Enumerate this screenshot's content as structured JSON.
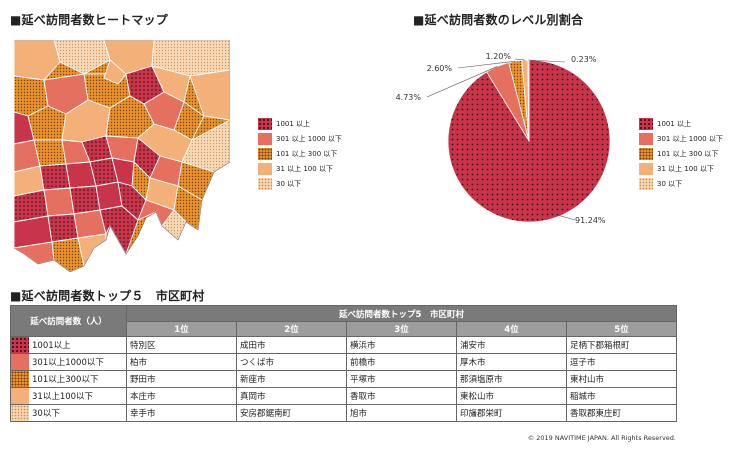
{
  "headings": {
    "map": "■延べ訪問者数ヒートマップ",
    "pie": "■延べ訪問者数のレベル別割合",
    "table": "■延べ訪問者数トップ５　市区町村"
  },
  "colors": {
    "level_1001": "#c8344a",
    "level_301": "#e5705f",
    "level_101": "#e9922e",
    "level_31": "#f4b079",
    "level_30": "#f6d7b5"
  },
  "legend": [
    {
      "label": "1001 以上"
    },
    {
      "label": "301 以上 1000 以下"
    },
    {
      "label": "101 以上 300 以下"
    },
    {
      "label": "31 以上 100 以下"
    },
    {
      "label": "30 以下"
    }
  ],
  "chart_data": {
    "type": "pie",
    "title": "■延べ訪問者数のレベル別割合",
    "categories": [
      "1001 以上",
      "301 以上 1000 以下",
      "101 以上 300 以下",
      "31 以上 100 以下",
      "30 以下"
    ],
    "values": [
      91.24,
      4.73,
      2.6,
      1.2,
      0.23
    ],
    "value_labels": [
      "91.24%",
      "4.73%",
      "2.60%",
      "1.20%",
      "0.23%"
    ],
    "colors": [
      "#c8344a",
      "#e5705f",
      "#e9922e",
      "#f4b079",
      "#f6d7b5"
    ],
    "legend_position": "right"
  },
  "table": {
    "lead_header": "延べ訪問者数（人）",
    "top_header": "延べ訪問者数トップ5　市区町村",
    "ranks": [
      "1位",
      "2位",
      "3位",
      "4位",
      "5位"
    ],
    "rows": [
      {
        "level": "1001以上",
        "cities": [
          "特別区",
          "成田市",
          "横浜市",
          "浦安市",
          "足柄下郡箱根町"
        ]
      },
      {
        "level": "301以上1000以下",
        "cities": [
          "柏市",
          "つくば市",
          "前橋市",
          "厚木市",
          "逗子市"
        ]
      },
      {
        "level": "101以上300以下",
        "cities": [
          "野田市",
          "新座市",
          "平塚市",
          "那須塩原市",
          "東村山市"
        ]
      },
      {
        "level": "31以上100以下",
        "cities": [
          "本庄市",
          "真岡市",
          "香取市",
          "東松山市",
          "稲城市"
        ]
      },
      {
        "level": "30以下",
        "cities": [
          "幸手市",
          "安房郡鋸南町",
          "旭市",
          "印旛郡栄町",
          "香取郡東庄町"
        ]
      }
    ]
  },
  "copyright": "© 2019 NAVITIME JAPAN. All Rights Reserved."
}
